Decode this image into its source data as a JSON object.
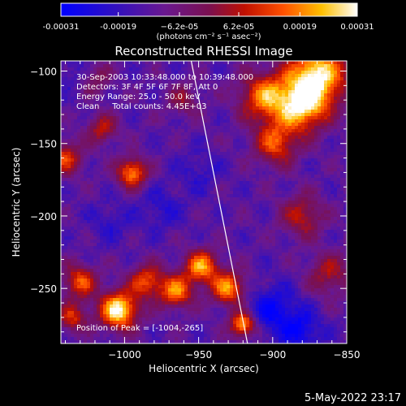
{
  "chart_data": {
    "type": "heatmap",
    "title": "Reconstructed RHESSI Image",
    "xlabel": "Heliocentric X (arcsec)",
    "ylabel": "Heliocentric Y (arcsec)",
    "xlim": [
      -1043,
      -850
    ],
    "ylim": [
      -288,
      -93
    ],
    "x_ticks": [
      -1000,
      -950,
      -900,
      -850
    ],
    "x_tick_labels": [
      "−1000",
      "−950",
      "−900",
      "−850"
    ],
    "y_ticks": [
      -100,
      -150,
      -200,
      -250
    ],
    "y_tick_labels": [
      "−100",
      "−150",
      "−200",
      "−250"
    ],
    "colorbar": {
      "range": [
        -0.00031,
        0.00031
      ],
      "ticks": [
        -0.00031,
        -0.00019,
        -6.2e-05,
        6.2e-05,
        0.00019,
        0.00031
      ],
      "tick_labels": [
        "-0.00031",
        "-0.00019",
        "−6.2e-05",
        "6.2e-05",
        "0.00019",
        "0.00031"
      ],
      "units": "(photons cm⁻² s⁻¹ asec⁻²)"
    },
    "annotations": [
      "30-Sep-2003 10:33:48.000 to 10:39:48.000",
      "Detectors: 3F 4F 5F 6F 7F 8F, Att 0",
      "Energy Range: 25.0 - 50.0 keV",
      "Clean     Total counts: 4.45E+03"
    ],
    "peak_label": "Position of Peak = [-1004,-265]",
    "peak_position": [
      -1004,
      -265
    ],
    "limb_line": [
      [
        -955,
        -93
      ],
      [
        -917,
        -288
      ]
    ],
    "bright_sources": [
      {
        "x": -1004,
        "y": -265,
        "intensity": 1.0,
        "spread": 9
      },
      {
        "x": -870,
        "y": -103,
        "intensity": 0.95,
        "spread": 14
      },
      {
        "x": -880,
        "y": -125,
        "intensity": 0.8,
        "spread": 12
      },
      {
        "x": -905,
        "y": -118,
        "intensity": 0.7,
        "spread": 12
      },
      {
        "x": -898,
        "y": -150,
        "intensity": 0.6,
        "spread": 10
      },
      {
        "x": -995,
        "y": -170,
        "intensity": 0.75,
        "spread": 7
      },
      {
        "x": -1040,
        "y": -160,
        "intensity": 0.55,
        "spread": 8
      },
      {
        "x": -1015,
        "y": -140,
        "intensity": 0.45,
        "spread": 7
      },
      {
        "x": -948,
        "y": -235,
        "intensity": 0.75,
        "spread": 8
      },
      {
        "x": -965,
        "y": -252,
        "intensity": 0.7,
        "spread": 8
      },
      {
        "x": -930,
        "y": -250,
        "intensity": 0.75,
        "spread": 8
      },
      {
        "x": -985,
        "y": -245,
        "intensity": 0.6,
        "spread": 8
      },
      {
        "x": -1030,
        "y": -245,
        "intensity": 0.6,
        "spread": 8
      },
      {
        "x": -1035,
        "y": -270,
        "intensity": 0.5,
        "spread": 7
      },
      {
        "x": -920,
        "y": -275,
        "intensity": 0.85,
        "spread": 6
      },
      {
        "x": -880,
        "y": -200,
        "intensity": 0.45,
        "spread": 10
      },
      {
        "x": -862,
        "y": -240,
        "intensity": 0.4,
        "spread": 10
      },
      {
        "x": -1020,
        "y": -105,
        "intensity": 0.3,
        "spread": 8
      },
      {
        "x": -960,
        "y": -120,
        "intensity": 0.3,
        "spread": 8
      }
    ],
    "dark_sources": [
      {
        "x": -900,
        "y": -265,
        "intensity": 0.9,
        "spread": 12
      },
      {
        "x": -880,
        "y": -280,
        "intensity": 0.8,
        "spread": 10
      },
      {
        "x": -975,
        "y": -195,
        "intensity": 0.5,
        "spread": 10
      },
      {
        "x": -1010,
        "y": -205,
        "intensity": 0.4,
        "spread": 10
      },
      {
        "x": -950,
        "y": -170,
        "intensity": 0.4,
        "spread": 10
      },
      {
        "x": -1035,
        "y": -100,
        "intensity": 0.35,
        "spread": 10
      }
    ]
  },
  "footer": {
    "timestamp": "5-May-2022 23:17"
  }
}
